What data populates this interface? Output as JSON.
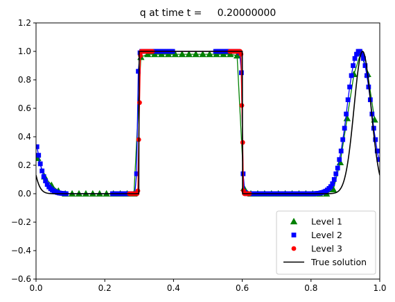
{
  "chart_data": {
    "type": "line",
    "title": "q at time t =     0.20000000",
    "xlim": [
      0.0,
      1.0
    ],
    "ylim": [
      -0.6,
      1.2
    ],
    "x_ticks": [
      "0.0",
      "0.2",
      "0.4",
      "0.6",
      "0.8",
      "1.0"
    ],
    "y_ticks": [
      "−0.6",
      "−0.4",
      "−0.2",
      "0.0",
      "0.2",
      "0.4",
      "0.6",
      "0.8",
      "1.0",
      "1.2"
    ],
    "x_tick_values": [
      0.0,
      0.2,
      0.4,
      0.6,
      0.8,
      1.0
    ],
    "y_tick_values": [
      -0.6,
      -0.4,
      -0.2,
      0.0,
      0.2,
      0.4,
      0.6,
      0.8,
      1.0,
      1.2
    ],
    "grid": false,
    "legend_position": "lower-right",
    "series": [
      {
        "name": "Level 1",
        "marker": "triangle",
        "color": "#008000",
        "x": [
          0.005,
          0.025,
          0.045,
          0.065,
          0.085,
          0.105,
          0.125,
          0.145,
          0.165,
          0.185,
          0.205,
          0.225,
          0.245,
          0.265,
          0.285,
          0.305,
          0.325,
          0.345,
          0.365,
          0.385,
          0.405,
          0.425,
          0.445,
          0.465,
          0.485,
          0.505,
          0.525,
          0.545,
          0.565,
          0.585,
          0.605,
          0.625,
          0.645,
          0.665,
          0.685,
          0.705,
          0.725,
          0.745,
          0.765,
          0.785,
          0.805,
          0.825,
          0.845,
          0.865,
          0.885,
          0.905,
          0.925,
          0.945,
          0.965,
          0.985
        ],
        "y": [
          0.25,
          0.12,
          0.06,
          0.02,
          0.0,
          0.0,
          0.0,
          0.0,
          0.0,
          0.0,
          0.0,
          0.0,
          0.0,
          0.0,
          0.0,
          0.96,
          0.98,
          0.98,
          0.98,
          0.98,
          0.98,
          0.98,
          0.98,
          0.98,
          0.98,
          0.98,
          0.98,
          0.98,
          0.98,
          0.97,
          0.04,
          0.0,
          0.0,
          0.0,
          0.0,
          0.0,
          0.0,
          0.0,
          0.0,
          0.0,
          0.0,
          0.0,
          0.0,
          0.03,
          0.22,
          0.53,
          0.84,
          0.99,
          0.84,
          0.52
        ]
      },
      {
        "name": "Level 2",
        "marker": "square",
        "color": "#0000ff",
        "x": [
          0.0025,
          0.0075,
          0.0125,
          0.0175,
          0.0225,
          0.0275,
          0.0325,
          0.0375,
          0.0425,
          0.0475,
          0.0525,
          0.0575,
          0.0625,
          0.0675,
          0.0725,
          0.0775,
          0.0825,
          0.0875,
          0.2225,
          0.2275,
          0.2325,
          0.2375,
          0.2425,
          0.2475,
          0.2525,
          0.2575,
          0.2625,
          0.2675,
          0.2725,
          0.2775,
          0.2825,
          0.2875,
          0.2925,
          0.2975,
          0.3025,
          0.3075,
          0.3125,
          0.3175,
          0.3225,
          0.3275,
          0.3325,
          0.3375,
          0.3425,
          0.3475,
          0.3525,
          0.3575,
          0.3625,
          0.3675,
          0.3725,
          0.3775,
          0.3825,
          0.3875,
          0.3925,
          0.3975,
          0.5225,
          0.5275,
          0.5325,
          0.5375,
          0.5425,
          0.5475,
          0.5525,
          0.5575,
          0.5625,
          0.5675,
          0.5725,
          0.5775,
          0.5825,
          0.5875,
          0.5925,
          0.5975,
          0.6025,
          0.6075,
          0.6125,
          0.6175,
          0.6225,
          0.6275,
          0.6325,
          0.6375,
          0.6425,
          0.6475,
          0.6525,
          0.6575,
          0.6625,
          0.6675,
          0.6725,
          0.6775,
          0.6825,
          0.6875,
          0.6925,
          0.6975,
          0.7025,
          0.7075,
          0.7125,
          0.7175,
          0.7225,
          0.7275,
          0.7325,
          0.7375,
          0.7425,
          0.7475,
          0.7525,
          0.7575,
          0.7625,
          0.7675,
          0.7725,
          0.7775,
          0.7825,
          0.7875,
          0.7925,
          0.7975,
          0.8025,
          0.8075,
          0.8125,
          0.8175,
          0.8225,
          0.8275,
          0.8325,
          0.8375,
          0.8425,
          0.8475,
          0.8525,
          0.8575,
          0.8625,
          0.8675,
          0.8725,
          0.8775,
          0.8825,
          0.8875,
          0.8925,
          0.8975,
          0.9025,
          0.9075,
          0.9125,
          0.9175,
          0.9225,
          0.9275,
          0.9325,
          0.9375,
          0.9425,
          0.9475,
          0.9525,
          0.9575,
          0.9625,
          0.9675,
          0.9725,
          0.9775,
          0.9825,
          0.9875,
          0.9925,
          0.9975
        ],
        "y": [
          0.33,
          0.27,
          0.21,
          0.16,
          0.12,
          0.09,
          0.065,
          0.048,
          0.035,
          0.025,
          0.018,
          0.012,
          0.008,
          0.005,
          0.003,
          0.002,
          0.001,
          0.0,
          0.0,
          0.0,
          0.0,
          0.0,
          0.0,
          0.0,
          0.0,
          0.0,
          0.0,
          0.0,
          0.0,
          0.0,
          0.0,
          0.0,
          0.14,
          0.86,
          0.99,
          1.0,
          1.0,
          1.0,
          1.0,
          1.0,
          1.0,
          1.0,
          1.0,
          1.0,
          1.0,
          1.0,
          1.0,
          1.0,
          1.0,
          1.0,
          1.0,
          1.0,
          1.0,
          1.0,
          1.0,
          1.0,
          1.0,
          1.0,
          1.0,
          1.0,
          1.0,
          1.0,
          1.0,
          1.0,
          1.0,
          1.0,
          1.0,
          1.0,
          0.99,
          0.85,
          0.14,
          0.01,
          0.0,
          0.0,
          0.0,
          0.0,
          0.0,
          0.0,
          0.0,
          0.0,
          0.0,
          0.0,
          0.0,
          0.0,
          0.0,
          0.0,
          0.0,
          0.0,
          0.0,
          0.0,
          0.0,
          0.0,
          0.0,
          0.0,
          0.0,
          0.0,
          0.0,
          0.0,
          0.0,
          0.0,
          0.0,
          0.0,
          0.0,
          0.0,
          0.0,
          0.0,
          0.0,
          0.0,
          0.0,
          0.0,
          0.0,
          0.0,
          0.001,
          0.002,
          0.003,
          0.005,
          0.008,
          0.012,
          0.018,
          0.026,
          0.037,
          0.05,
          0.07,
          0.1,
          0.14,
          0.18,
          0.24,
          0.3,
          0.38,
          0.46,
          0.56,
          0.66,
          0.75,
          0.83,
          0.9,
          0.95,
          0.98,
          1.0,
          1.0,
          0.98,
          0.95,
          0.9,
          0.83,
          0.75,
          0.66,
          0.56,
          0.46,
          0.38,
          0.3,
          0.24
        ]
      },
      {
        "name": "Level 3",
        "marker": "circle",
        "color": "#ff0000",
        "x": [
          0.27125,
          0.27375,
          0.27625,
          0.27875,
          0.28125,
          0.28375,
          0.28625,
          0.28875,
          0.29125,
          0.29375,
          0.29625,
          0.29875,
          0.30125,
          0.30375,
          0.30625,
          0.30875,
          0.31125,
          0.31375,
          0.31625,
          0.31875,
          0.32125,
          0.32375,
          0.32625,
          0.32875,
          0.33125,
          0.33375,
          0.33625,
          0.33875,
          0.56375,
          0.56625,
          0.56875,
          0.57125,
          0.57375,
          0.57625,
          0.57875,
          0.58125,
          0.58375,
          0.58625,
          0.58875,
          0.59125,
          0.59375,
          0.59625,
          0.59875,
          0.60125,
          0.60375,
          0.60625,
          0.60875,
          0.61125,
          0.61375,
          0.61625,
          0.61875,
          0.62125
        ],
        "y": [
          0.0,
          0.0,
          0.0,
          0.0,
          0.0,
          0.0,
          0.0,
          0.0,
          0.0,
          0.0,
          0.02,
          0.38,
          0.64,
          0.97,
          1.0,
          1.0,
          1.0,
          1.0,
          1.0,
          1.0,
          1.0,
          1.0,
          1.0,
          1.0,
          1.0,
          1.0,
          1.0,
          1.0,
          1.0,
          1.0,
          1.0,
          1.0,
          1.0,
          1.0,
          1.0,
          1.0,
          1.0,
          1.0,
          1.0,
          1.0,
          1.0,
          0.98,
          0.62,
          0.36,
          0.02,
          0.0,
          0.0,
          0.0,
          0.0,
          0.0,
          0.0,
          0.0
        ]
      },
      {
        "name": "True solution",
        "marker": "line",
        "color": "#000000"
      }
    ]
  }
}
